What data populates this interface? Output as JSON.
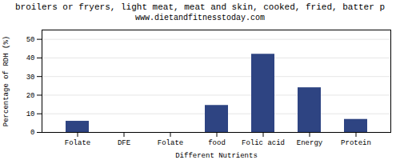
{
  "chart_data": {
    "type": "bar",
    "title": "broilers or fryers, light meat, meat and skin, cooked, fried, batter p",
    "subtitle": "www.dietandfitnesstoday.com",
    "xlabel": "Different Nutrients",
    "ylabel": "Percentage of RDH (%)",
    "categories": [
      "Folate",
      "DFE",
      "Folate",
      "food",
      "Folic acid",
      "Energy",
      "Protein"
    ],
    "values": [
      6,
      0,
      0,
      14.5,
      42,
      24,
      7
    ],
    "color": "#2e4482",
    "ylim": [
      0,
      55
    ],
    "yticks": [
      0,
      10,
      20,
      30,
      40,
      50
    ],
    "grid": true
  }
}
